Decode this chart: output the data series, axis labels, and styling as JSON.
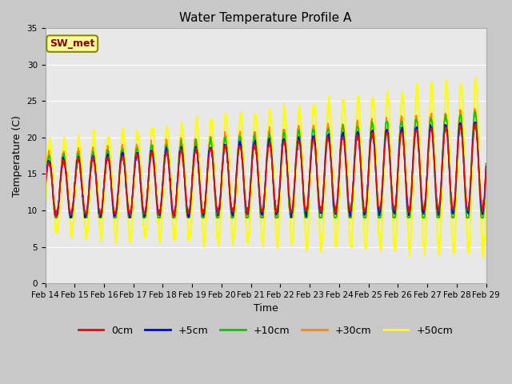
{
  "title": "Water Temperature Profile A",
  "xlabel": "Time",
  "ylabel": "Temperature (C)",
  "annotation": "SW_met",
  "ylim": [
    0,
    35
  ],
  "yticks": [
    0,
    5,
    10,
    15,
    20,
    25,
    30,
    35
  ],
  "n_days": 15,
  "x_tick_labels": [
    "Feb 14",
    "Feb 15",
    "Feb 16",
    "Feb 17",
    "Feb 18",
    "Feb 19",
    "Feb 20",
    "Feb 21",
    "Feb 22",
    "Feb 23",
    "Feb 24",
    "Feb 25",
    "Feb 26",
    "Feb 27",
    "Feb 28",
    "Feb 29"
  ],
  "series_order": [
    "+50cm",
    "+30cm",
    "+10cm",
    "+5cm",
    "0cm"
  ],
  "series": {
    "0cm": {
      "color": "#ff0000",
      "linewidth": 1.2
    },
    "+5cm": {
      "color": "#0000ff",
      "linewidth": 1.2
    },
    "+10cm": {
      "color": "#00cc00",
      "linewidth": 1.2
    },
    "+30cm": {
      "color": "#ff8800",
      "linewidth": 1.2
    },
    "+50cm": {
      "color": "#ffff00",
      "linewidth": 1.5
    }
  },
  "legend_series": [
    "0cm",
    "+5cm",
    "+10cm",
    "+30cm",
    "+50cm"
  ],
  "fig_facecolor": "#c8c8c8",
  "ax_facecolor": "#e8e8e8",
  "title_fontsize": 11,
  "axis_fontsize": 9,
  "tick_fontsize": 7.5,
  "legend_fontsize": 9,
  "annotation_box_facecolor": "#ffff99",
  "annotation_text_color": "#880000",
  "annotation_edge_color": "#888800"
}
